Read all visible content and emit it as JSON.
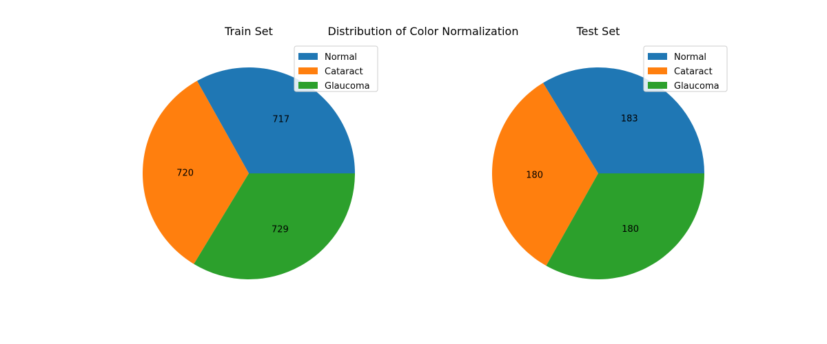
{
  "suptitle": "Distribution of Color Normalization",
  "colors": {
    "Normal": "#1f77b4",
    "Cataract": "#ff7f0e",
    "Glaucoma": "#2ca02c"
  },
  "chart_data": [
    {
      "type": "pie",
      "title": "Train Set",
      "labels": [
        "Normal",
        "Cataract",
        "Glaucoma"
      ],
      "values": [
        717,
        720,
        729
      ],
      "legend": "upper right"
    },
    {
      "type": "pie",
      "title": "Test Set",
      "labels": [
        "Normal",
        "Cataract",
        "Glaucoma"
      ],
      "values": [
        183,
        180,
        180
      ],
      "legend": "upper right"
    }
  ]
}
